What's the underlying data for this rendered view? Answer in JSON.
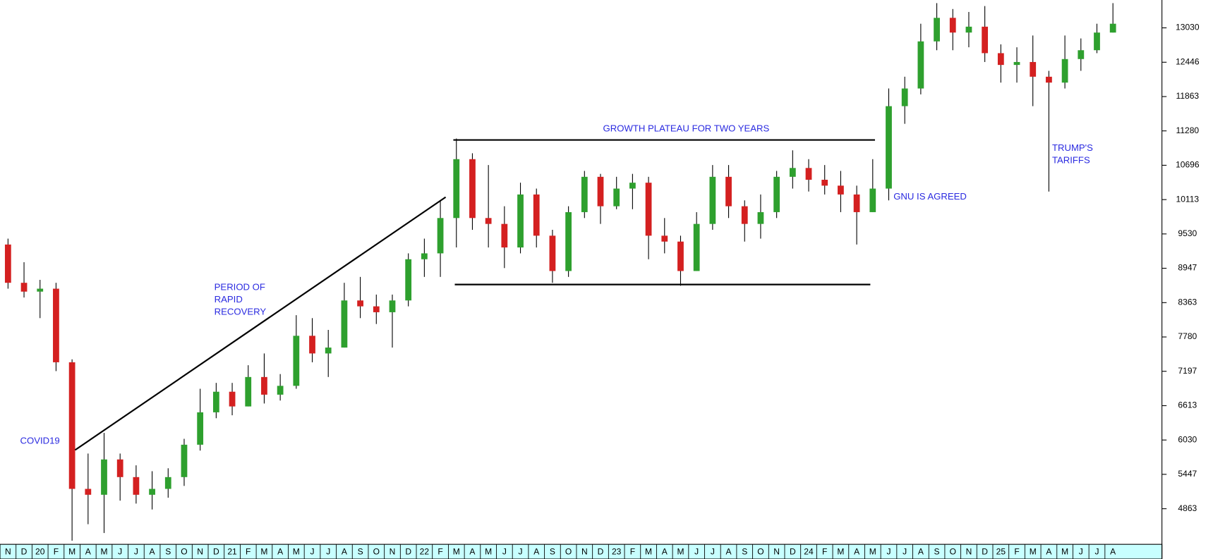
{
  "chart_data": {
    "type": "candlestick",
    "categories": [
      "N",
      "D",
      "20",
      "F",
      "M",
      "A",
      "M",
      "J",
      "J",
      "A",
      "S",
      "O",
      "N",
      "D",
      "21",
      "F",
      "M",
      "A",
      "M",
      "J",
      "J",
      "A",
      "S",
      "O",
      "N",
      "D",
      "22",
      "F",
      "M",
      "A",
      "M",
      "J",
      "J",
      "A",
      "S",
      "O",
      "N",
      "D",
      "23",
      "F",
      "M",
      "A",
      "M",
      "J",
      "J",
      "A",
      "S",
      "O",
      "N",
      "D",
      "24",
      "F",
      "M",
      "A",
      "M",
      "J",
      "J",
      "A",
      "S",
      "O",
      "N",
      "D",
      "25",
      "F",
      "M",
      "A",
      "M",
      "J",
      "J",
      "A"
    ],
    "open": [
      9350,
      8700,
      8550,
      8600,
      7350,
      5200,
      5100,
      5700,
      5400,
      5100,
      5200,
      5400,
      5950,
      6500,
      6850,
      6600,
      7100,
      6800,
      6950,
      7800,
      7500,
      7600,
      8400,
      8300,
      8200,
      8400,
      9100,
      9200,
      9800,
      10800,
      9800,
      9700,
      9300,
      10200,
      9500,
      8900,
      9900,
      10500,
      10000,
      10300,
      10400,
      9500,
      9400,
      8900,
      9700,
      10500,
      10000,
      9700,
      9900,
      10500,
      10650,
      10450,
      10350,
      10200,
      9900,
      10300,
      11700,
      12000,
      12800,
      13200,
      12950,
      13050,
      12600,
      12400,
      12450,
      12200,
      12100,
      12500,
      12650,
      12950
    ],
    "high": [
      9450,
      9050,
      8750,
      8700,
      7400,
      5800,
      6150,
      5800,
      5600,
      5500,
      5550,
      6050,
      6900,
      7000,
      7000,
      7300,
      7500,
      7150,
      8150,
      8100,
      7900,
      8700,
      8800,
      8500,
      8500,
      9200,
      9450,
      10100,
      11150,
      10900,
      10700,
      10000,
      10400,
      10300,
      9600,
      10000,
      10600,
      10550,
      10500,
      10550,
      10500,
      9800,
      9500,
      9900,
      10700,
      10700,
      10100,
      10200,
      10600,
      10950,
      10800,
      10700,
      10600,
      10350,
      10800,
      12000,
      12200,
      13100,
      13450,
      13350,
      13300,
      13400,
      12750,
      12700,
      12900,
      12300,
      12900,
      12850,
      13100,
      13450
    ],
    "low": [
      8600,
      8450,
      8100,
      7200,
      4320,
      4600,
      4450,
      5000,
      4950,
      4850,
      5050,
      5250,
      5850,
      6400,
      6450,
      6600,
      6650,
      6700,
      6900,
      7350,
      7100,
      7600,
      8100,
      8000,
      7600,
      8300,
      8800,
      8800,
      9300,
      9600,
      9300,
      8950,
      9200,
      9300,
      8700,
      8800,
      9800,
      9700,
      9950,
      9950,
      9100,
      9200,
      8650,
      8900,
      9600,
      9800,
      9400,
      9450,
      9800,
      10300,
      10250,
      10200,
      9900,
      9350,
      9900,
      10100,
      11400,
      11900,
      12650,
      12650,
      12700,
      12450,
      12100,
      12100,
      11700,
      10250,
      12000,
      12300,
      12600,
      12950
    ],
    "close": [
      8700,
      8550,
      8600,
      7350,
      5200,
      5100,
      5700,
      5400,
      5100,
      5200,
      5400,
      5950,
      6500,
      6850,
      6600,
      7100,
      6800,
      6950,
      7800,
      7500,
      7600,
      8400,
      8300,
      8200,
      8400,
      9100,
      9200,
      9800,
      10800,
      9800,
      9700,
      9300,
      10200,
      9500,
      8900,
      9900,
      10500,
      10000,
      10300,
      10400,
      9500,
      9400,
      8900,
      9700,
      10500,
      10000,
      9700,
      9900,
      10500,
      10650,
      10450,
      10350,
      10200,
      9900,
      10300,
      11700,
      12000,
      12800,
      13200,
      12950,
      13050,
      12600,
      12400,
      12450,
      12200,
      12100,
      12500,
      12650,
      12950,
      13100
    ],
    "up_color": "#2ea02e",
    "down_color": "#d42020",
    "ylim": [
      4311,
      13503
    ],
    "yticks": [
      4863,
      5447,
      6030,
      6613,
      7197,
      7780,
      8363,
      8947,
      9530,
      10113,
      10696,
      11280,
      11863,
      12446,
      13030
    ],
    "trend_lines": [
      {
        "x": [
          4.19,
          27.33
        ],
        "y": [
          5860,
          10155
        ]
      },
      {
        "x": [
          27.81,
          54.14
        ],
        "y": [
          11126,
          11126
        ]
      },
      {
        "x": [
          27.9,
          53.85
        ],
        "y": [
          8671,
          8671
        ]
      }
    ],
    "annotations": [
      [
        "COVID19"
      ],
      [
        "PERIOD OF",
        "RAPID",
        "RECOVERY"
      ],
      [
        "GROWTH PLATEAU FOR TWO YEARS"
      ],
      [
        "GNU IS AGREED"
      ],
      [
        "TRUMP'S",
        "TARIFFS"
      ]
    ]
  }
}
